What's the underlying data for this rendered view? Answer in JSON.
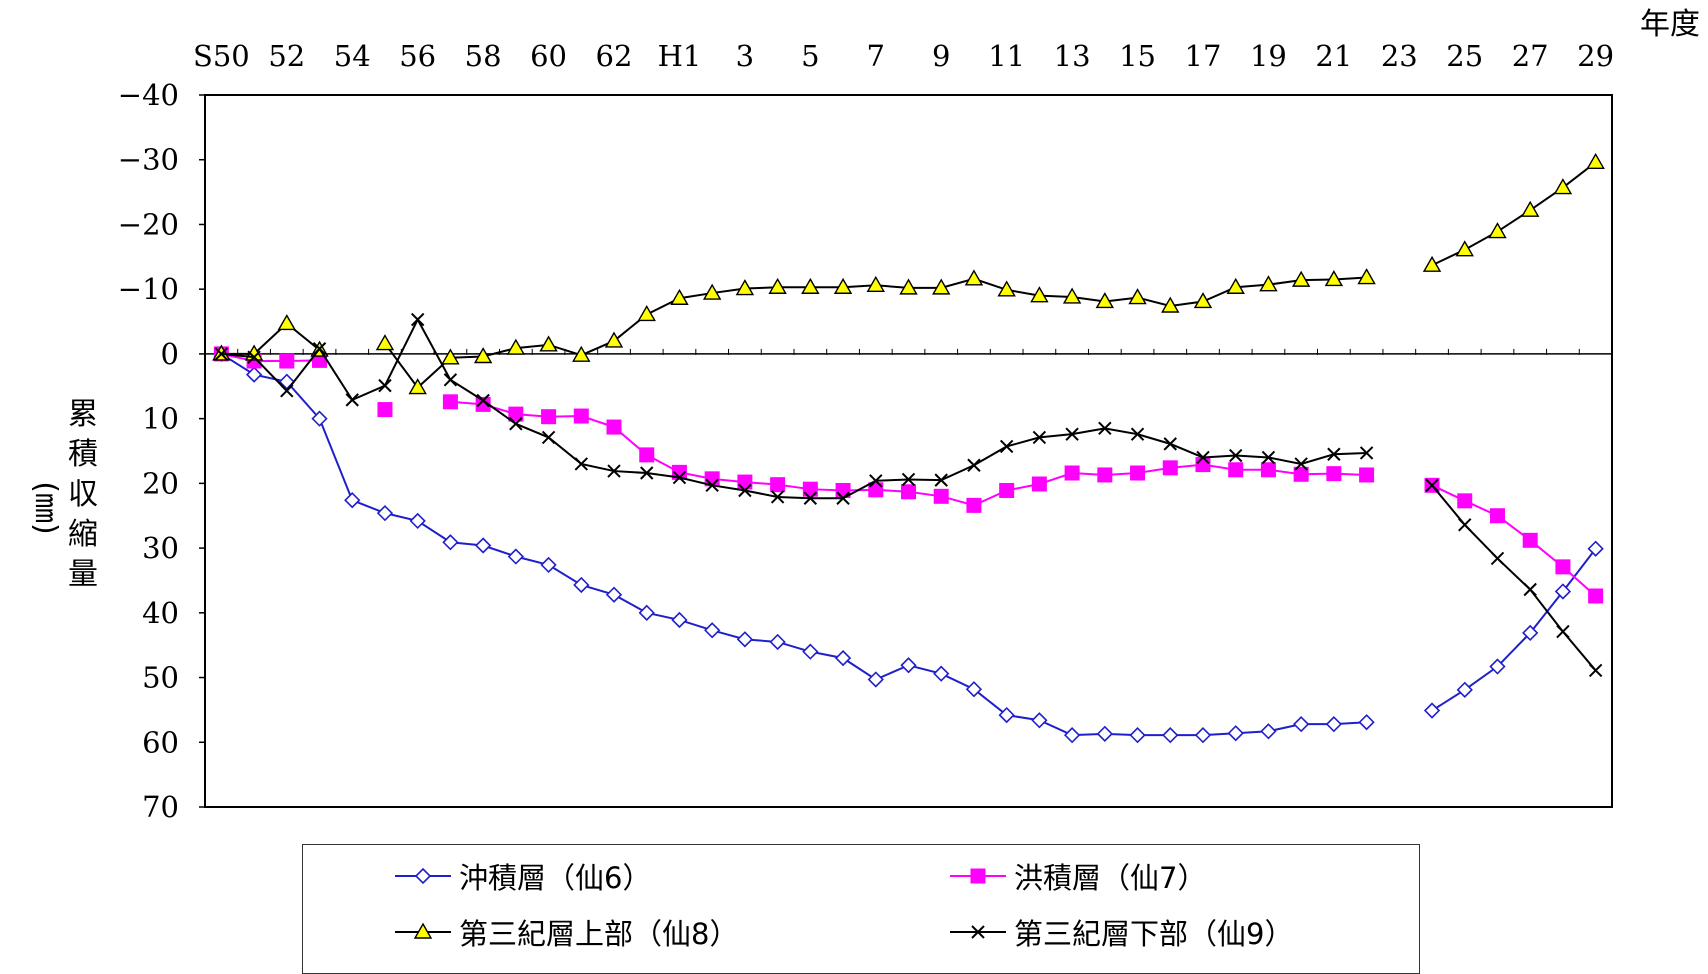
{
  "chart_data": {
    "type": "line",
    "unit_label": "年度",
    "ylabel": "累積収縮量",
    "ylabel_unit": "(㎜)",
    "ylim": [
      -40,
      70
    ],
    "y_inverted": true,
    "y_ticks": [
      -40,
      -30,
      -20,
      -10,
      0,
      10,
      20,
      30,
      40,
      50,
      60,
      70
    ],
    "x_tick_labels": [
      "S50",
      "52",
      "54",
      "56",
      "58",
      "60",
      "62",
      "H1",
      "3",
      "5",
      "7",
      "9",
      "11",
      "13",
      "15",
      "17",
      "19",
      "21",
      "23",
      "25",
      "27",
      "29"
    ],
    "x": [
      "S50",
      "S51",
      "S52",
      "S53",
      "S54",
      "S55",
      "S56",
      "S57",
      "S58",
      "S59",
      "S60",
      "S61",
      "S62",
      "S63",
      "H1",
      "H2",
      "H3",
      "H4",
      "H5",
      "H6",
      "H7",
      "H8",
      "H9",
      "H10",
      "H11",
      "H12",
      "H13",
      "H14",
      "H15",
      "H16",
      "H17",
      "H18",
      "H19",
      "H20",
      "H21",
      "H22",
      "H23",
      "H24",
      "H25",
      "H26",
      "H27",
      "H28",
      "H29"
    ],
    "legend_position": "bottom",
    "series": [
      {
        "name": "沖積層（仙6）",
        "color": "#1f1fcc",
        "marker": "diamond-open",
        "values": [
          0,
          3.2,
          4.3,
          10,
          22.6,
          24.6,
          25.8,
          29.1,
          29.6,
          31.3,
          32.6,
          35.7,
          37.2,
          40,
          41.1,
          42.7,
          44.1,
          44.5,
          46,
          47,
          50.3,
          48.1,
          49.4,
          51.8,
          55.8,
          56.6,
          58.9,
          58.7,
          58.9,
          58.9,
          58.9,
          58.6,
          58.3,
          57.2,
          57.2,
          56.9,
          null,
          55.1,
          51.9,
          48.3,
          43.1,
          36.7,
          30.1
        ]
      },
      {
        "name": "洪積層（仙7）",
        "color": "#ff00ff",
        "marker": "square-filled",
        "values": [
          0,
          1.1,
          1.1,
          1,
          null,
          8.6,
          null,
          7.4,
          7.8,
          9.3,
          9.7,
          9.6,
          11.3,
          15.6,
          18.3,
          19.3,
          19.8,
          20.2,
          20.9,
          21.1,
          21,
          21.3,
          22,
          23.4,
          21.1,
          20.1,
          18.4,
          18.7,
          18.4,
          17.6,
          17.1,
          17.9,
          17.9,
          18.6,
          18.5,
          18.7,
          null,
          20.3,
          22.7,
          25,
          28.8,
          32.9,
          37.4
        ]
      },
      {
        "name": "第三紀層上部（仙8）",
        "color": "#000000",
        "marker": "triangle-yellow",
        "values": [
          0,
          0,
          -4.7,
          -0.6,
          null,
          -1.6,
          5.2,
          0.6,
          0.4,
          -0.9,
          -1.4,
          0.2,
          -2,
          -6.1,
          -8.6,
          -9.4,
          -10.1,
          -10.3,
          -10.3,
          -10.3,
          -10.6,
          -10.2,
          -10.2,
          -11.6,
          -9.9,
          -9,
          -8.8,
          -8.1,
          -8.7,
          -7.4,
          -8.1,
          -10.3,
          -10.7,
          -11.4,
          -11.5,
          -11.8,
          null,
          -13.7,
          -16.1,
          -18.9,
          -22.2,
          -25.7,
          -29.6
        ]
      },
      {
        "name": "第三紀層下部（仙9）",
        "color": "#000000",
        "marker": "x",
        "values": [
          0,
          0.5,
          5.7,
          -0.8,
          7.1,
          4.9,
          -5.3,
          4,
          7.2,
          10.8,
          12.9,
          17,
          18.1,
          18.4,
          19.1,
          20.3,
          21.1,
          22.1,
          22.3,
          22.3,
          19.6,
          19.4,
          19.5,
          17.2,
          14.3,
          12.9,
          12.4,
          11.5,
          12.4,
          13.9,
          16,
          15.7,
          16,
          17,
          15.5,
          15.3,
          null,
          20.3,
          26.4,
          31.6,
          36.4,
          42.9,
          48.9
        ]
      }
    ]
  }
}
